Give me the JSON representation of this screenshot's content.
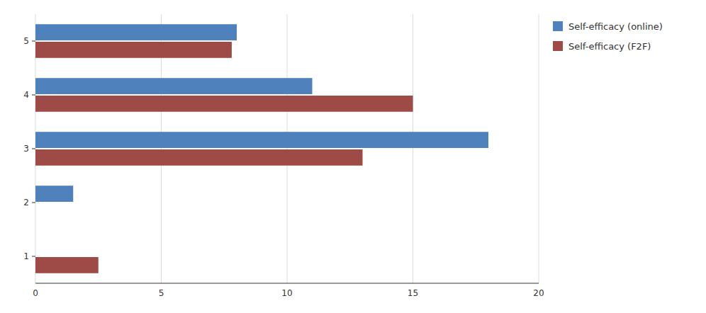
{
  "chart_data": {
    "type": "bar",
    "orientation": "horizontal",
    "categories": [
      "1",
      "2",
      "3",
      "4",
      "5"
    ],
    "series": [
      {
        "name": "Self-efficacy (online)",
        "color": "#4F81BD",
        "values": [
          0,
          1.5,
          18,
          11,
          8
        ]
      },
      {
        "name": "Self-efficacy (F2F)",
        "color": "#9E4B47",
        "values": [
          2.5,
          0,
          13,
          15,
          7.8
        ]
      }
    ],
    "xlim": [
      0,
      20
    ],
    "xticks": [
      0,
      5,
      10,
      15,
      20
    ],
    "grid": true,
    "legend": "right"
  }
}
